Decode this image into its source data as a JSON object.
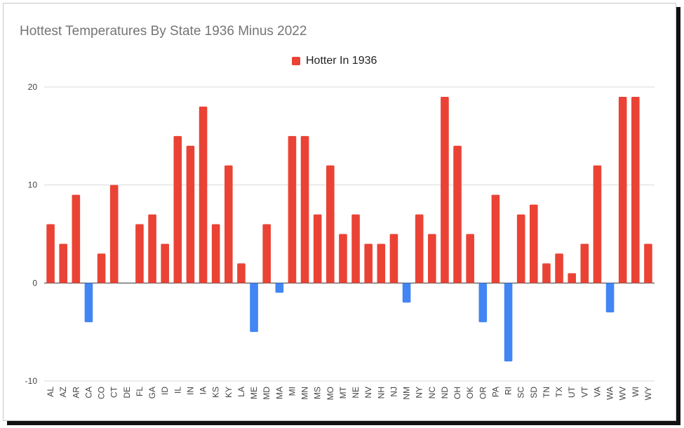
{
  "chart_data": {
    "type": "bar",
    "title": "Hottest Temperatures By State 1936 Minus 2022",
    "legend": [
      {
        "label": "Hotter In 1936",
        "color": "#ea4335"
      }
    ],
    "negative_color": "#4285f4",
    "positive_color": "#ea4335",
    "ylim": [
      -10,
      20
    ],
    "yticks": [
      -10,
      0,
      10,
      20
    ],
    "ytick_labels": [
      "-10",
      "0",
      "10",
      "20"
    ],
    "categories": [
      "AL",
      "AZ",
      "AR",
      "CA",
      "CO",
      "CT",
      "DE",
      "FL",
      "GA",
      "ID",
      "IL",
      "IN",
      "IA",
      "KS",
      "KY",
      "LA",
      "ME",
      "MD",
      "MA",
      "MI",
      "MN",
      "MS",
      "MO",
      "MT",
      "NE",
      "NV",
      "NH",
      "NJ",
      "NM",
      "NY",
      "NC",
      "ND",
      "OH",
      "OK",
      "OR",
      "PA",
      "RI",
      "SC",
      "SD",
      "TN",
      "TX",
      "UT",
      "VT",
      "VA",
      "WA",
      "WV",
      "WI",
      "WY"
    ],
    "values": [
      6,
      4,
      9,
      -4,
      3,
      10,
      0,
      6,
      7,
      4,
      15,
      14,
      18,
      6,
      12,
      2,
      -5,
      6,
      -1,
      15,
      15,
      7,
      12,
      5,
      7,
      4,
      4,
      5,
      -2,
      7,
      5,
      19,
      14,
      5,
      -4,
      9,
      -8,
      7,
      8,
      2,
      3,
      1,
      4,
      12,
      -3,
      19,
      19,
      4
    ],
    "grid": true,
    "legend_position": "top-center"
  }
}
